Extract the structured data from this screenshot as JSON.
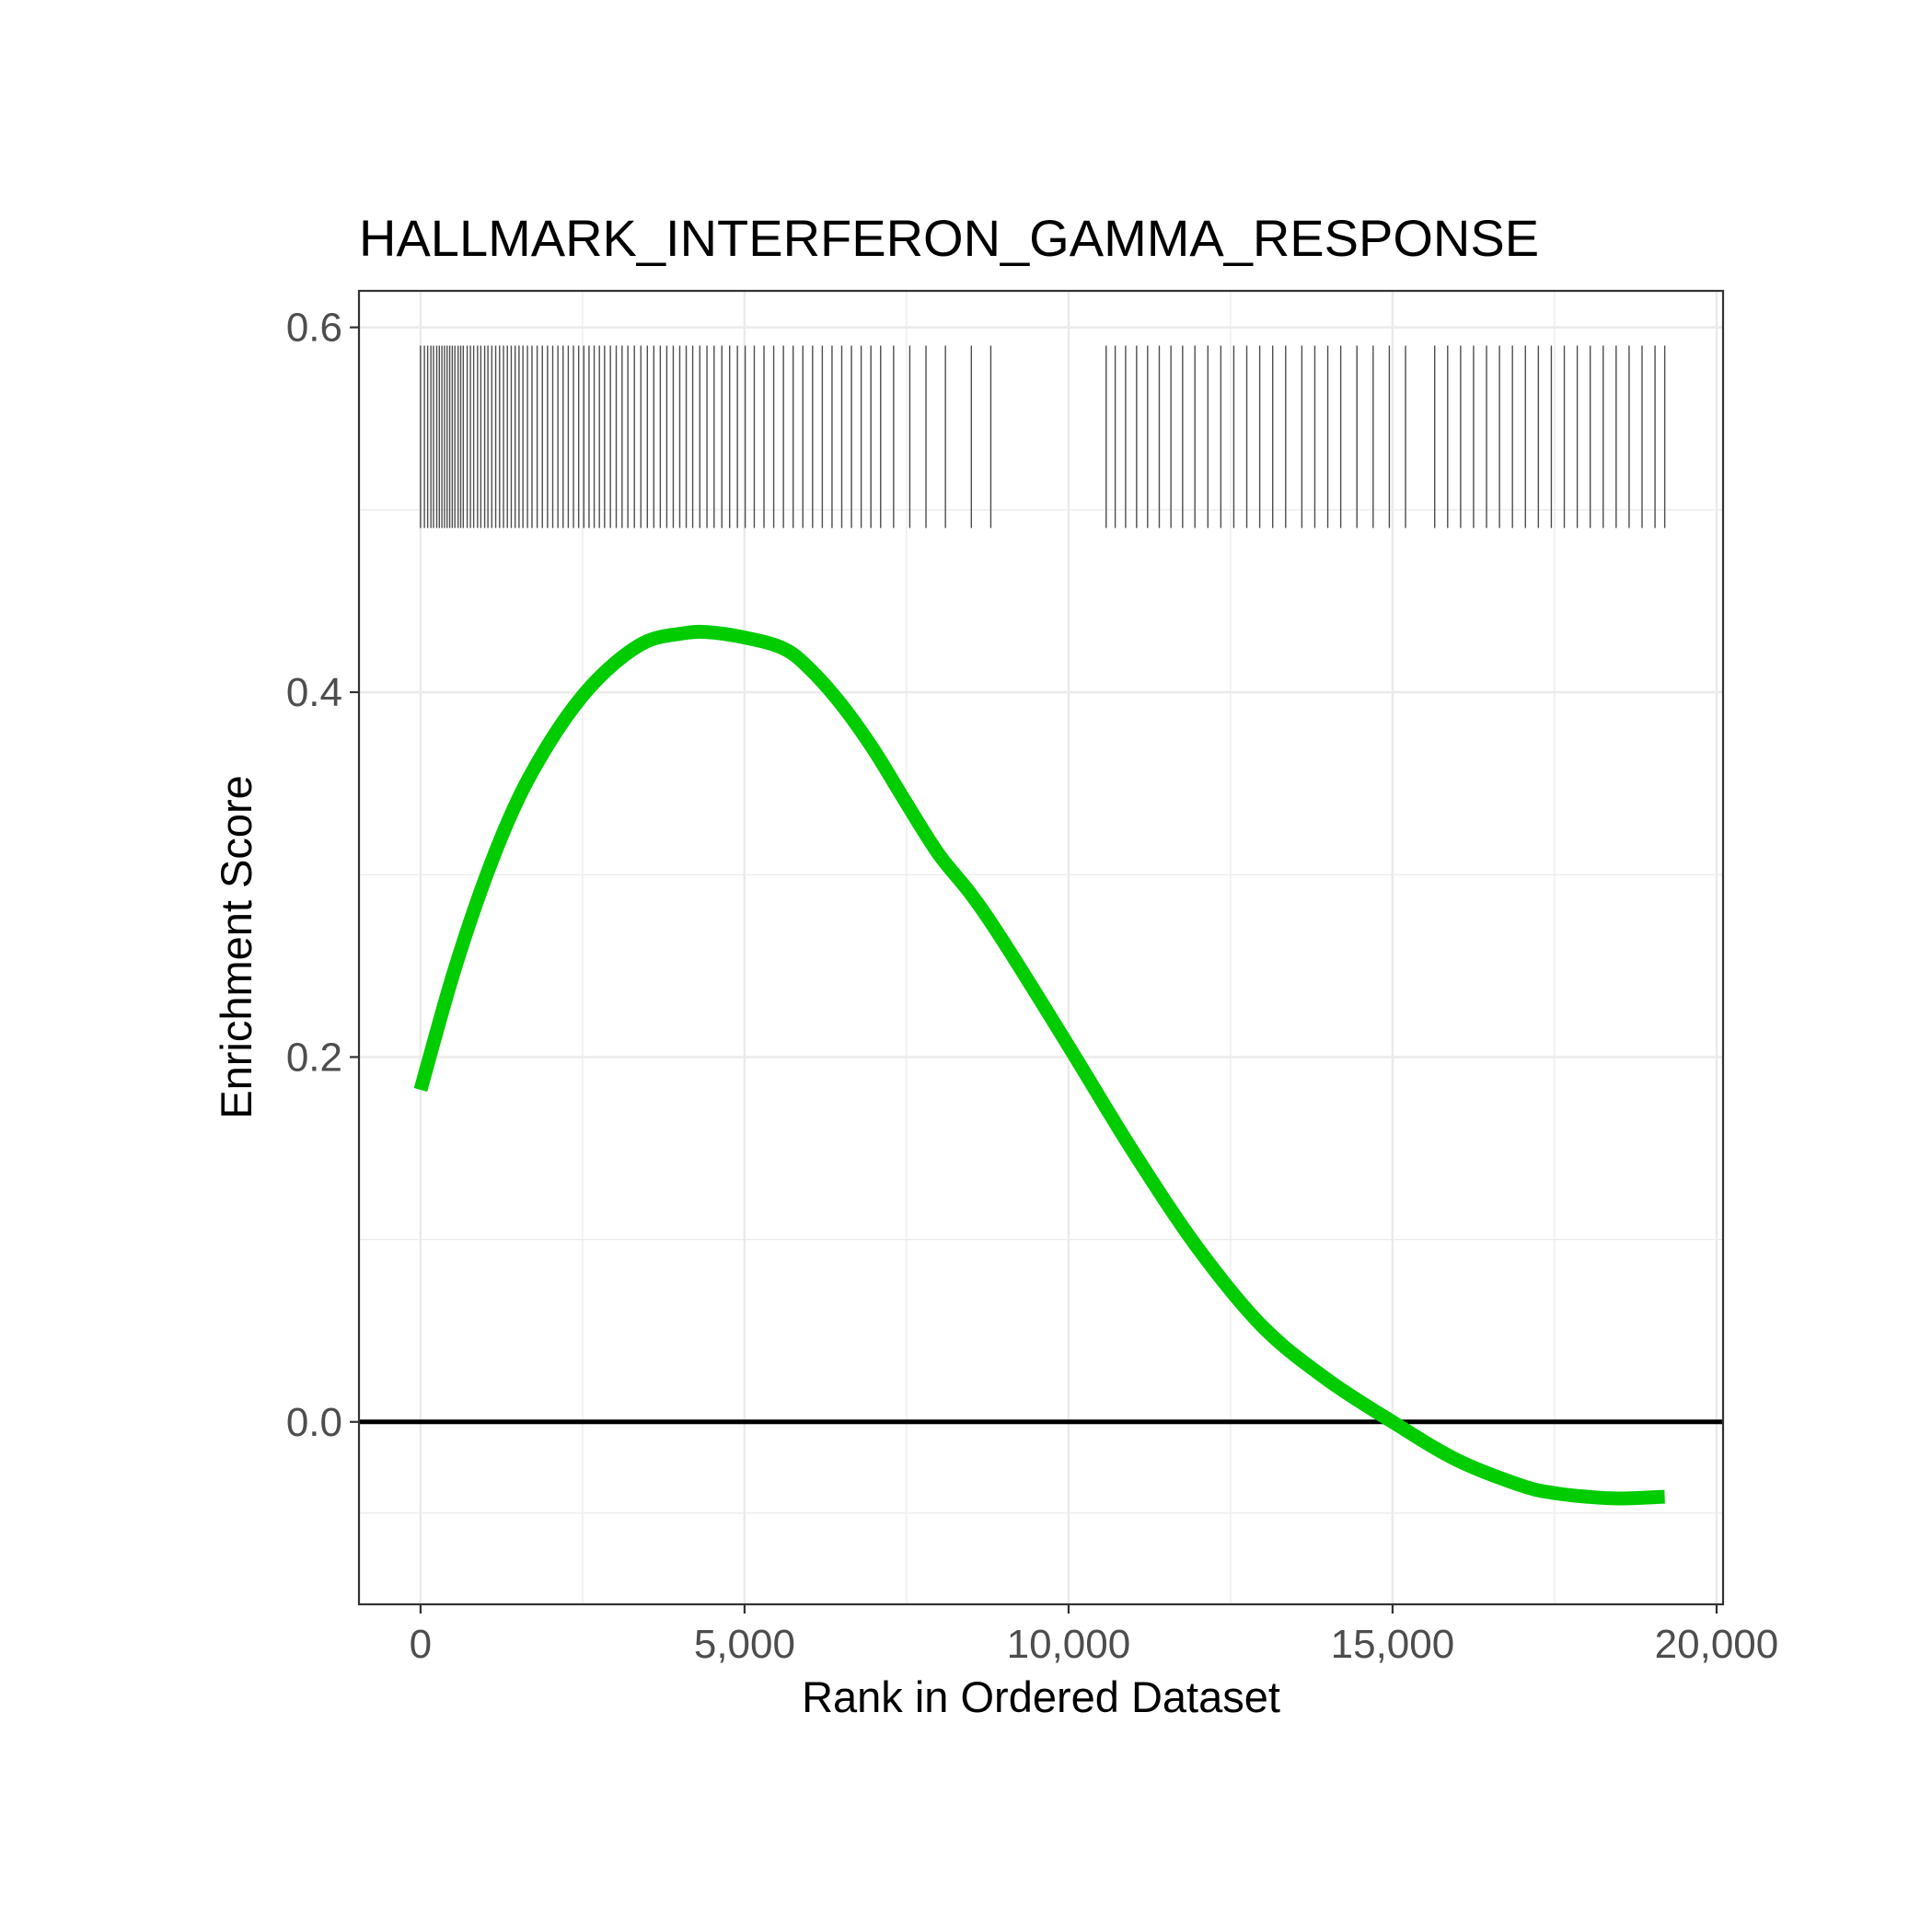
{
  "chart_data": {
    "type": "line",
    "title": "HALLMARK_INTERFERON_GAMMA_RESPONSE",
    "xlabel": "Rank in Ordered Dataset",
    "ylabel": "Enrichment Score",
    "xlim": [
      -950,
      20100
    ],
    "ylim": [
      -0.1,
      0.62
    ],
    "x_ticks": [
      0,
      5000,
      10000,
      15000,
      20000
    ],
    "x_tick_labels": [
      "0",
      "5,000",
      "10,000",
      "15,000",
      "20,000"
    ],
    "y_ticks": [
      0.0,
      0.2,
      0.4,
      0.6
    ],
    "y_tick_labels": [
      "0.0",
      "0.2",
      "0.4",
      "0.6"
    ],
    "grid": true,
    "zero_line": 0,
    "colors": {
      "curve": "#00cc00",
      "hits": "#4d4d4d",
      "zero_line": "#000000",
      "grid": "#ebebeb",
      "panel_border": "#333333"
    },
    "series": [
      {
        "x": [
          0,
          500,
          1000,
          1500,
          2000,
          2500,
          3000,
          3500,
          4000,
          4400,
          5000,
          5600,
          6000,
          6500,
          7000,
          7500,
          8000,
          8500,
          9000,
          10000,
          11000,
          12000,
          13000,
          14000,
          15000,
          16000,
          17000,
          17500,
          18000,
          18500,
          19200
        ],
        "values": [
          0.182,
          0.245,
          0.298,
          0.341,
          0.373,
          0.398,
          0.416,
          0.428,
          0.432,
          0.433,
          0.43,
          0.424,
          0.413,
          0.393,
          0.368,
          0.339,
          0.311,
          0.289,
          0.263,
          0.206,
          0.148,
          0.095,
          0.052,
          0.023,
          0.0,
          -0.021,
          -0.035,
          -0.039,
          -0.041,
          -0.042,
          -0.041
        ]
      }
    ],
    "hits_band": {
      "y_range": [
        0.49,
        0.59
      ]
    },
    "hits": [
      0,
      60,
      110,
      160,
      200,
      250,
      290,
      330,
      370,
      410,
      450,
      490,
      530,
      580,
      620,
      660,
      720,
      770,
      820,
      880,
      930,
      990,
      1040,
      1100,
      1160,
      1220,
      1280,
      1340,
      1400,
      1460,
      1520,
      1580,
      1650,
      1720,
      1800,
      1880,
      1960,
      2040,
      2120,
      2200,
      2280,
      2360,
      2440,
      2520,
      2600,
      2680,
      2760,
      2840,
      2930,
      3020,
      3110,
      3200,
      3300,
      3400,
      3500,
      3600,
      3700,
      3800,
      3900,
      4000,
      4100,
      4200,
      4310,
      4420,
      4530,
      4650,
      4770,
      4890,
      5010,
      5150,
      5300,
      5450,
      5600,
      5750,
      5900,
      6050,
      6200,
      6350,
      6500,
      6650,
      6800,
      6950,
      7100,
      7300,
      7550,
      7800,
      8100,
      8500,
      8800,
      10580,
      10720,
      10880,
      11050,
      11220,
      11400,
      11580,
      11760,
      11950,
      12150,
      12350,
      12550,
      12750,
      12950,
      13150,
      13350,
      13600,
      13800,
      14000,
      14200,
      14450,
      14700,
      14950,
      15200,
      15650,
      15850,
      16050,
      16250,
      16450,
      16650,
      16850,
      17050,
      17250,
      17450,
      17650,
      17850,
      18050,
      18250,
      18450,
      18650,
      18850,
      19050,
      19200
    ]
  }
}
